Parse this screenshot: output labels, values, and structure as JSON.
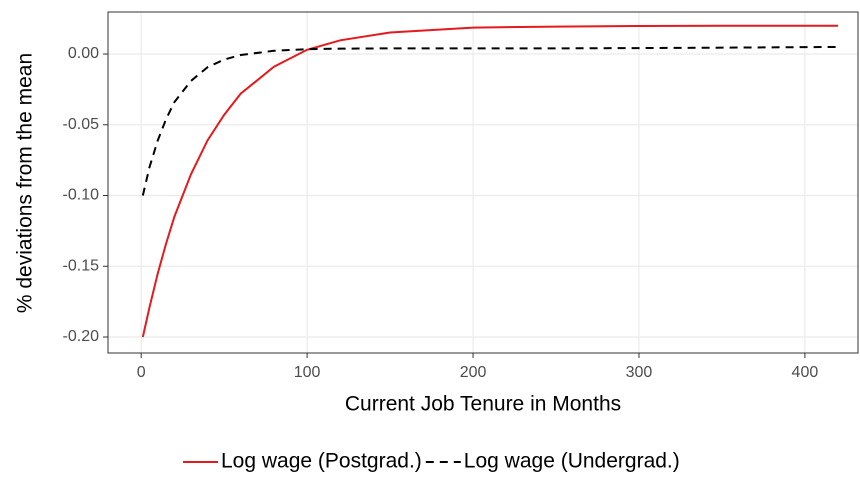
{
  "chart_data": {
    "type": "line",
    "x_label": "Current Job Tenure in Months",
    "y_label": "% deviations from the mean",
    "x": [
      1,
      5,
      10,
      15,
      20,
      30,
      40,
      50,
      60,
      80,
      100,
      120,
      150,
      200,
      250,
      300,
      350,
      420
    ],
    "series": [
      {
        "name": "Log wage (Postgrad.)",
        "color": "#e41a1c",
        "dash": "solid",
        "values": [
          -0.2,
          -0.179,
          -0.155,
          -0.134,
          -0.115,
          -0.085,
          -0.061,
          -0.043,
          -0.028,
          -0.009,
          0.003,
          0.0097,
          0.0152,
          0.0187,
          0.0194,
          0.0198,
          0.02,
          0.02
        ]
      },
      {
        "name": "Log wage (Undergrad.)",
        "color": "#000000",
        "dash": "dashed",
        "values": [
          -0.1,
          -0.08,
          -0.061,
          -0.046,
          -0.034,
          -0.019,
          -0.0093,
          -0.0039,
          -0.0007,
          0.0023,
          0.0034,
          0.0038,
          0.004,
          0.004,
          0.004,
          0.0042,
          0.0045,
          0.005
        ]
      }
    ],
    "xlim": [
      -20,
      432
    ],
    "xticks": [
      0,
      100,
      200,
      300,
      400
    ],
    "ylim": [
      -0.2113,
      0.0297
    ],
    "yticks": [
      {
        "value": -0.2,
        "label": "-0.20"
      },
      {
        "value": -0.15,
        "label": "-0.15"
      },
      {
        "value": -0.1,
        "label": "-0.10"
      },
      {
        "value": -0.05,
        "label": "-0.05"
      },
      {
        "value": 0,
        "label": "0.00"
      }
    ],
    "grid": true,
    "legend": "bottom"
  }
}
